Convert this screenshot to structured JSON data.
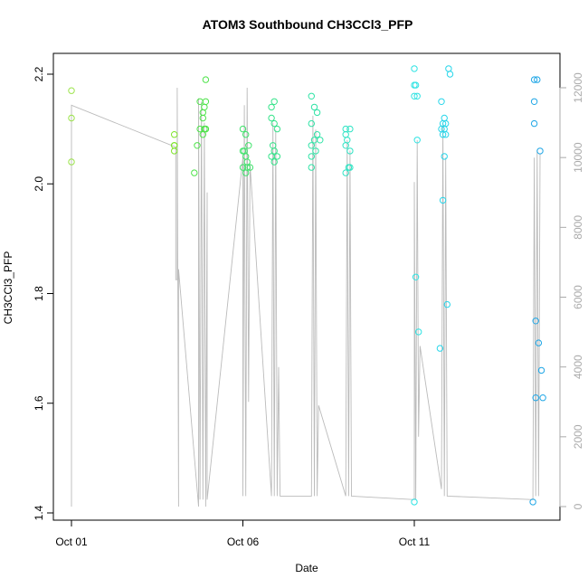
{
  "chart_data": {
    "type": "scatter",
    "title": "ATOM3 Southbound CH3CCl3_PFP",
    "xlabel": "Date",
    "ylabel": "CH3CCl3_PFP",
    "xlim": [
      "2016-10-01",
      "2016-10-15"
    ],
    "ylim": [
      1.4,
      2.2
    ],
    "x_ticks": [
      "Oct 01",
      "Oct 06",
      "Oct 11"
    ],
    "y_ticks": [
      "1.4",
      "1.6",
      "1.8",
      "2.0",
      "2.2"
    ],
    "right_axis": {
      "ylim": [
        0,
        12000
      ],
      "ticks": [
        "0",
        "2000",
        "4000",
        "6000",
        "8000",
        "10000",
        "12000"
      ],
      "color": "#aaaaaa"
    },
    "grid": false,
    "legend": "none",
    "series": [
      {
        "points": [
          {
            "x": "2016-10-01T00:00",
            "y": 2.17,
            "color": "#9be34a"
          },
          {
            "x": "2016-10-01T00:00",
            "y": 2.12,
            "color": "#9be34a"
          },
          {
            "x": "2016-10-01T00:00",
            "y": 2.04,
            "color": "#9be34a"
          },
          {
            "x": "2016-10-04T00:00",
            "y": 2.09,
            "color": "#7ee32a"
          },
          {
            "x": "2016-10-04T00:00",
            "y": 2.07,
            "color": "#7ee32a"
          },
          {
            "x": "2016-10-04T00:00",
            "y": 2.06,
            "color": "#7ee32a"
          },
          {
            "x": "2016-10-04T00:00",
            "y": 2.07,
            "color": "#7ee32a"
          },
          {
            "x": "2016-10-04T18:00",
            "y": 2.15,
            "color": "#4ee34a"
          },
          {
            "x": "2016-10-04T20:00",
            "y": 2.13,
            "color": "#4ee34a"
          },
          {
            "x": "2016-10-04T18:00",
            "y": 2.1,
            "color": "#4ee34a"
          },
          {
            "x": "2016-10-04T16:00",
            "y": 2.07,
            "color": "#4ee34a"
          },
          {
            "x": "2016-10-04T14:00",
            "y": 2.02,
            "color": "#4ee34a"
          },
          {
            "x": "2016-10-04T22:00",
            "y": 2.19,
            "color": "#4ee34a"
          },
          {
            "x": "2016-10-04T22:00",
            "y": 2.15,
            "color": "#4ee34a"
          },
          {
            "x": "2016-10-04T21:00",
            "y": 2.14,
            "color": "#4ee34a"
          },
          {
            "x": "2016-10-04T20:00",
            "y": 2.12,
            "color": "#4ee34a"
          },
          {
            "x": "2016-10-04T21:00",
            "y": 2.1,
            "color": "#4ee34a"
          },
          {
            "x": "2016-10-04T22:00",
            "y": 2.1,
            "color": "#4ee34a"
          },
          {
            "x": "2016-10-04T20:00",
            "y": 2.09,
            "color": "#4ee34a"
          },
          {
            "x": "2016-10-04T22:00",
            "y": 2.1,
            "color": "#4ee34a"
          },
          {
            "x": "2016-10-06T00:00",
            "y": 2.1,
            "color": "#3ee36a"
          },
          {
            "x": "2016-10-06T02:00",
            "y": 2.09,
            "color": "#3ee36a"
          },
          {
            "x": "2016-10-06T04:00",
            "y": 2.07,
            "color": "#3ee36a"
          },
          {
            "x": "2016-10-06T01:00",
            "y": 2.06,
            "color": "#3ee36a"
          },
          {
            "x": "2016-10-06T00:00",
            "y": 2.06,
            "color": "#3ee36a"
          },
          {
            "x": "2016-10-06T02:00",
            "y": 2.05,
            "color": "#3ee36a"
          },
          {
            "x": "2016-10-06T03:00",
            "y": 2.04,
            "color": "#3ee36a"
          },
          {
            "x": "2016-10-06T00:00",
            "y": 2.03,
            "color": "#3ee36a"
          },
          {
            "x": "2016-10-06T03:00",
            "y": 2.03,
            "color": "#3ee36a"
          },
          {
            "x": "2016-10-06T02:00",
            "y": 2.02,
            "color": "#3ee36a"
          },
          {
            "x": "2016-10-06T05:00",
            "y": 2.03,
            "color": "#3ee36a"
          },
          {
            "x": "2016-10-06T20:00",
            "y": 2.14,
            "color": "#36e38a"
          },
          {
            "x": "2016-10-06T22:00",
            "y": 2.15,
            "color": "#36e38a"
          },
          {
            "x": "2016-10-06T20:00",
            "y": 2.12,
            "color": "#36e38a"
          },
          {
            "x": "2016-10-06T22:00",
            "y": 2.11,
            "color": "#36e38a"
          },
          {
            "x": "2016-10-07T00:00",
            "y": 2.1,
            "color": "#36e38a"
          },
          {
            "x": "2016-10-06T21:00",
            "y": 2.07,
            "color": "#36e38a"
          },
          {
            "x": "2016-10-06T22:00",
            "y": 2.06,
            "color": "#36e38a"
          },
          {
            "x": "2016-10-07T00:00",
            "y": 2.05,
            "color": "#36e38a"
          },
          {
            "x": "2016-10-06T20:00",
            "y": 2.05,
            "color": "#36e38a"
          },
          {
            "x": "2016-10-06T22:00",
            "y": 2.04,
            "color": "#36e38a"
          },
          {
            "x": "2016-10-08T00:00",
            "y": 2.16,
            "color": "#30e3a6"
          },
          {
            "x": "2016-10-08T02:00",
            "y": 2.14,
            "color": "#30e3a6"
          },
          {
            "x": "2016-10-08T04:00",
            "y": 2.13,
            "color": "#30e3a6"
          },
          {
            "x": "2016-10-08T00:00",
            "y": 2.11,
            "color": "#30e3a6"
          },
          {
            "x": "2016-10-08T04:00",
            "y": 2.09,
            "color": "#30e3a6"
          },
          {
            "x": "2016-10-08T06:00",
            "y": 2.08,
            "color": "#30e3a6"
          },
          {
            "x": "2016-10-08T02:00",
            "y": 2.08,
            "color": "#30e3a6"
          },
          {
            "x": "2016-10-08T00:00",
            "y": 2.07,
            "color": "#30e3a6"
          },
          {
            "x": "2016-10-08T03:00",
            "y": 2.06,
            "color": "#30e3a6"
          },
          {
            "x": "2016-10-08T00:00",
            "y": 2.05,
            "color": "#30e3a6"
          },
          {
            "x": "2016-10-08T00:00",
            "y": 2.03,
            "color": "#30e3a6"
          },
          {
            "x": "2016-10-09T00:00",
            "y": 2.1,
            "color": "#2ee3c4"
          },
          {
            "x": "2016-10-09T03:00",
            "y": 2.1,
            "color": "#2ee3c4"
          },
          {
            "x": "2016-10-09T00:00",
            "y": 2.09,
            "color": "#2ee3c4"
          },
          {
            "x": "2016-10-09T01:00",
            "y": 2.08,
            "color": "#2ee3c4"
          },
          {
            "x": "2016-10-09T00:00",
            "y": 2.07,
            "color": "#2ee3c4"
          },
          {
            "x": "2016-10-09T03:00",
            "y": 2.06,
            "color": "#2ee3c4"
          },
          {
            "x": "2016-10-09T00:00",
            "y": 2.02,
            "color": "#2ee3c4"
          },
          {
            "x": "2016-10-09T02:00",
            "y": 2.03,
            "color": "#2ee3c4"
          },
          {
            "x": "2016-10-09T03:00",
            "y": 2.03,
            "color": "#2ee3c4"
          },
          {
            "x": "2016-10-11T00:00",
            "y": 2.21,
            "color": "#2ee3e3"
          },
          {
            "x": "2016-10-11T00:00",
            "y": 2.18,
            "color": "#2ee3e3"
          },
          {
            "x": "2016-10-11T01:00",
            "y": 2.18,
            "color": "#2ee3e3"
          },
          {
            "x": "2016-10-11T00:00",
            "y": 2.16,
            "color": "#2ee3e3"
          },
          {
            "x": "2016-10-11T02:00",
            "y": 2.16,
            "color": "#2ee3e3"
          },
          {
            "x": "2016-10-11T02:00",
            "y": 2.08,
            "color": "#2ee3e3"
          },
          {
            "x": "2016-10-11T01:00",
            "y": 1.83,
            "color": "#2ee3e3"
          },
          {
            "x": "2016-10-11T03:00",
            "y": 1.73,
            "color": "#2ee3e3"
          },
          {
            "x": "2016-10-11T00:00",
            "y": 1.42,
            "color": "#2ee3e3"
          },
          {
            "x": "2016-10-11T19:00",
            "y": 2.15,
            "color": "#28d6ea"
          },
          {
            "x": "2016-10-11T21:00",
            "y": 2.12,
            "color": "#28d6ea"
          },
          {
            "x": "2016-10-11T22:00",
            "y": 2.11,
            "color": "#28d6ea"
          },
          {
            "x": "2016-10-11T20:00",
            "y": 2.11,
            "color": "#28d6ea"
          },
          {
            "x": "2016-10-11T19:00",
            "y": 2.1,
            "color": "#28d6ea"
          },
          {
            "x": "2016-10-11T21:00",
            "y": 2.1,
            "color": "#28d6ea"
          },
          {
            "x": "2016-10-11T20:00",
            "y": 2.09,
            "color": "#28d6ea"
          },
          {
            "x": "2016-10-11T22:00",
            "y": 2.09,
            "color": "#28d6ea"
          },
          {
            "x": "2016-10-11T21:00",
            "y": 2.05,
            "color": "#28d6ea"
          },
          {
            "x": "2016-10-11T20:00",
            "y": 1.97,
            "color": "#28d6ea"
          },
          {
            "x": "2016-10-11T23:00",
            "y": 1.78,
            "color": "#28d6ea"
          },
          {
            "x": "2016-10-11T18:00",
            "y": 1.7,
            "color": "#28d6ea"
          },
          {
            "x": "2016-10-12T00:00",
            "y": 2.21,
            "color": "#28d6ea"
          },
          {
            "x": "2016-10-12T01:00",
            "y": 2.2,
            "color": "#28d6ea"
          },
          {
            "x": "2016-10-14T12:00",
            "y": 2.19,
            "color": "#1fa6e6"
          },
          {
            "x": "2016-10-14T14:00",
            "y": 2.19,
            "color": "#1fa6e6"
          },
          {
            "x": "2016-10-14T12:00",
            "y": 2.15,
            "color": "#1fa6e6"
          },
          {
            "x": "2016-10-14T12:00",
            "y": 2.11,
            "color": "#1fa6e6"
          },
          {
            "x": "2016-10-14T16:00",
            "y": 2.06,
            "color": "#1fa6e6"
          },
          {
            "x": "2016-10-14T13:00",
            "y": 1.75,
            "color": "#1fa6e6"
          },
          {
            "x": "2016-10-14T15:00",
            "y": 1.71,
            "color": "#1fa6e6"
          },
          {
            "x": "2016-10-14T17:00",
            "y": 1.66,
            "color": "#1fa6e6"
          },
          {
            "x": "2016-10-14T13:00",
            "y": 1.61,
            "color": "#1fa6e6"
          },
          {
            "x": "2016-10-14T18:00",
            "y": 1.61,
            "color": "#1fa6e6"
          },
          {
            "x": "2016-10-14T11:00",
            "y": 1.42,
            "color": "#1fa6e6"
          }
        ]
      },
      {
        "axis": "right",
        "color": "#bbbbbb",
        "line": [
          [
            "2016-10-01T00:00",
            0
          ],
          [
            "2016-10-01T00:00",
            11500
          ],
          [
            "2016-10-04T01:00",
            10300
          ],
          [
            "2016-10-04T01:00",
            6500
          ],
          [
            "2016-10-04T02:00",
            6500
          ],
          [
            "2016-10-04T02:00",
            12000
          ],
          [
            "2016-10-04T03:00",
            0
          ],
          [
            "2016-10-04T03:00",
            6800
          ],
          [
            "2016-10-04T17:00",
            0
          ],
          [
            "2016-10-04T17:00",
            11700
          ],
          [
            "2016-10-04T18:00",
            200
          ],
          [
            "2016-10-04T19:00",
            11600
          ],
          [
            "2016-10-04T20:00",
            200
          ],
          [
            "2016-10-04T21:00",
            11000
          ],
          [
            "2016-10-04T22:00",
            0
          ],
          [
            "2016-10-04T23:00",
            9000
          ],
          [
            "2016-10-04T23:00",
            200
          ],
          [
            "2016-10-06T00:00",
            10000
          ],
          [
            "2016-10-06T00:00",
            300
          ],
          [
            "2016-10-06T01:00",
            11500
          ],
          [
            "2016-10-06T02:00",
            300
          ],
          [
            "2016-10-06T03:00",
            12000
          ],
          [
            "2016-10-06T04:00",
            3000
          ],
          [
            "2016-10-06T05:00",
            9800
          ],
          [
            "2016-10-06T20:00",
            300
          ],
          [
            "2016-10-06T21:00",
            11000
          ],
          [
            "2016-10-06T22:00",
            300
          ],
          [
            "2016-10-06T23:00",
            10800
          ],
          [
            "2016-10-07T00:00",
            300
          ],
          [
            "2016-10-07T01:00",
            4000
          ],
          [
            "2016-10-07T02:00",
            300
          ],
          [
            "2016-10-08T00:00",
            300
          ],
          [
            "2016-10-08T01:00",
            11200
          ],
          [
            "2016-10-08T02:00",
            300
          ],
          [
            "2016-10-08T03:00",
            10800
          ],
          [
            "2016-10-08T04:00",
            300
          ],
          [
            "2016-10-08T05:00",
            2900
          ],
          [
            "2016-10-09T00:00",
            300
          ],
          [
            "2016-10-09T01:00",
            10500
          ],
          [
            "2016-10-09T02:00",
            300
          ],
          [
            "2016-10-09T03:00",
            10200
          ],
          [
            "2016-10-09T04:00",
            300
          ],
          [
            "2016-10-11T00:00",
            200
          ],
          [
            "2016-10-11T00:00",
            9300
          ],
          [
            "2016-10-11T01:00",
            200
          ],
          [
            "2016-10-11T02:00",
            10500
          ],
          [
            "2016-10-11T03:00",
            2000
          ],
          [
            "2016-10-11T04:00",
            4600
          ],
          [
            "2016-10-11T19:00",
            500
          ],
          [
            "2016-10-11T20:00",
            11000
          ],
          [
            "2016-10-11T21:00",
            300
          ],
          [
            "2016-10-11T22:00",
            10000
          ],
          [
            "2016-10-11T23:00",
            300
          ],
          [
            "2016-10-14T11:00",
            200
          ],
          [
            "2016-10-14T12:00",
            10000
          ],
          [
            "2016-10-14T13:00",
            300
          ],
          [
            "2016-10-14T14:00",
            10200
          ],
          [
            "2016-10-14T15:00",
            300
          ],
          [
            "2016-10-14T16:00",
            10100
          ]
        ]
      }
    ]
  }
}
